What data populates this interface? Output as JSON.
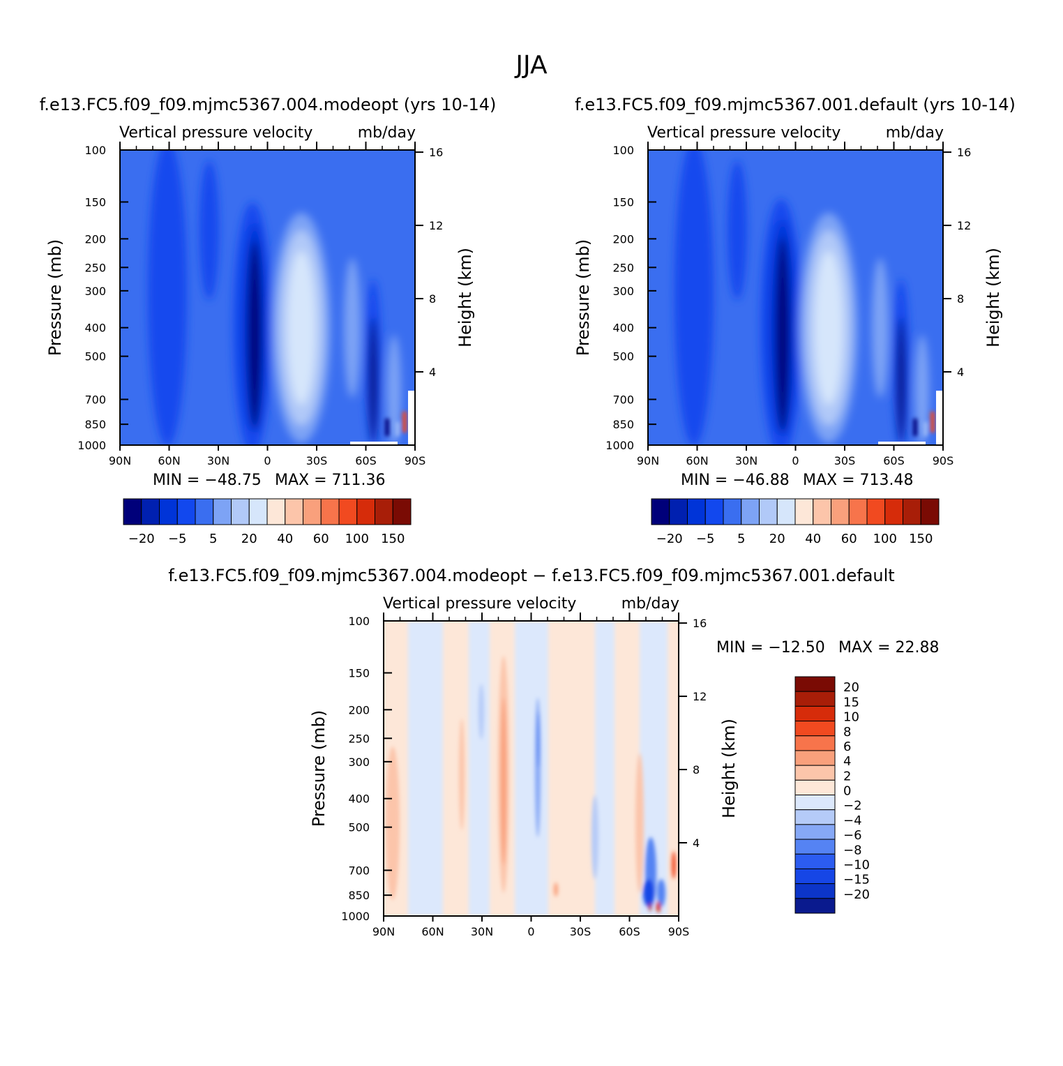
{
  "main_title": "JJA",
  "colors": {
    "panel_palette": [
      "#00007a",
      "#0020b0",
      "#0034d8",
      "#1248ee",
      "#3a6ef0",
      "#7da3f5",
      "#b1c9f8",
      "#d6e6fb",
      "#fde7d8",
      "#fcc5aa",
      "#f9a07c",
      "#f7744b",
      "#f14a20",
      "#d62c0a",
      "#a81e08",
      "#7a0b04"
    ],
    "diff_palette": [
      "#0a1a8e",
      "#0c35c8",
      "#1646e6",
      "#2c5cf0",
      "#5583f3",
      "#86a8f6",
      "#b5cbf8",
      "#dce8fc",
      "#fde7d8",
      "#fcc5aa",
      "#f9a07c",
      "#f7744b",
      "#f14a20",
      "#d62c0a",
      "#a81e08",
      "#7a0b04"
    ]
  },
  "chart_data": [
    {
      "type": "heatmap",
      "title": "f.e13.FC5.f09_f09.mjmc5367.004.modeopt (yrs 10-14)",
      "subtitle_left": "Vertical pressure velocity",
      "units": "mb/day",
      "ylabel": "Pressure (mb)",
      "ylabel_right": "Height (km)",
      "x_ticks": [
        "90N",
        "60N",
        "30N",
        "0",
        "30S",
        "60S",
        "90S"
      ],
      "y_ticks": [
        100,
        150,
        200,
        250,
        300,
        400,
        500,
        700,
        850,
        1000
      ],
      "y_right_ticks": [
        16,
        12,
        8,
        4
      ],
      "min_label": "MIN = −48.75",
      "max_label": "MAX = 711.36",
      "colorbar_labels": [
        "−20",
        "−5",
        "5",
        "20",
        "40",
        "60",
        "100",
        "150"
      ],
      "ylim": [
        1000,
        100
      ]
    },
    {
      "type": "heatmap",
      "title": "f.e13.FC5.f09_f09.mjmc5367.001.default (yrs 10-14)",
      "subtitle_left": "Vertical pressure velocity",
      "units": "mb/day",
      "ylabel": "Pressure (mb)",
      "ylabel_right": "Height (km)",
      "x_ticks": [
        "90N",
        "60N",
        "30N",
        "0",
        "30S",
        "60S",
        "90S"
      ],
      "y_ticks": [
        100,
        150,
        200,
        250,
        300,
        400,
        500,
        700,
        850,
        1000
      ],
      "y_right_ticks": [
        16,
        12,
        8,
        4
      ],
      "min_label": "MIN = −46.88",
      "max_label": "MAX = 713.48",
      "colorbar_labels": [
        "−20",
        "−5",
        "5",
        "20",
        "40",
        "60",
        "100",
        "150"
      ],
      "ylim": [
        1000,
        100
      ]
    },
    {
      "type": "heatmap",
      "title": "f.e13.FC5.f09_f09.mjmc5367.004.modeopt − f.e13.FC5.f09_f09.mjmc5367.001.default",
      "subtitle_left": "Vertical pressure velocity",
      "units": "mb/day",
      "ylabel": "Pressure (mb)",
      "ylabel_right": "Height (km)",
      "x_ticks": [
        "90N",
        "60N",
        "30N",
        "0",
        "30S",
        "60S",
        "90S"
      ],
      "y_ticks": [
        100,
        150,
        200,
        250,
        300,
        400,
        500,
        700,
        850,
        1000
      ],
      "y_right_ticks": [
        16,
        12,
        8,
        4
      ],
      "min_label": "MIN = −12.50",
      "max_label": "MAX =   22.88",
      "colorbar_labels": [
        "20",
        "15",
        "10",
        "8",
        "6",
        "4",
        "2",
        "0",
        "−2",
        "−4",
        "−6",
        "−8",
        "−10",
        "−15",
        "−20"
      ],
      "ylim": [
        1000,
        100
      ]
    }
  ]
}
